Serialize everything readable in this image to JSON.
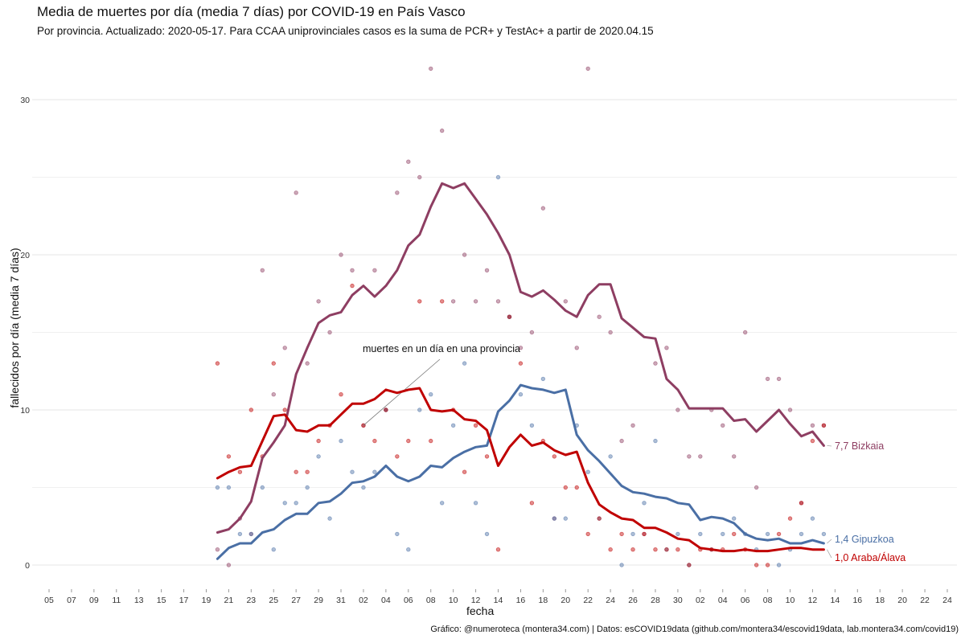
{
  "title": "Media de muertes por día (media 7 días) por COVID-19 en País Vasco",
  "subtitle": "Por provincia. Actualizado: 2020-05-17. Para CCAA uniprovinciales casos es la suma de PCR+ y TestAc+ a partir de 2020.04.15",
  "caption": "Gráfico: @numeroteca (montera34.com) | Datos: esCOVID19data (github.com/montera34/escovid19data, lab.montera34.com/covid19)",
  "chart_data": {
    "type": "line",
    "xlabel": "fecha",
    "ylabel": "fallecidos por día (media 7 días)",
    "x_range": [
      "2020-03-05",
      "2020-05-24"
    ],
    "ylim": [
      0,
      31
    ],
    "y_ticks": [
      0,
      10,
      20,
      30
    ],
    "x_tick_labels": [
      "05",
      "07",
      "09",
      "11",
      "13",
      "15",
      "17",
      "19",
      "21",
      "23",
      "25",
      "27",
      "29",
      "31",
      "02",
      "04",
      "06",
      "08",
      "10",
      "12",
      "14",
      "16",
      "18",
      "20",
      "22",
      "24",
      "26",
      "28",
      "30",
      "02",
      "04",
      "06",
      "08",
      "10",
      "12",
      "14",
      "16",
      "18",
      "20",
      "22",
      "24"
    ],
    "grid": true,
    "annotation": "muertes en un día en una provincia",
    "series": [
      {
        "name": "Bizkaia",
        "end_label": "7,7 Bizkaia",
        "color": "#8e3e62",
        "x": [
          "2020-03-20",
          "2020-03-21",
          "2020-03-22",
          "2020-03-23",
          "2020-03-24",
          "2020-03-25",
          "2020-03-26",
          "2020-03-27",
          "2020-03-28",
          "2020-03-29",
          "2020-03-30",
          "2020-03-31",
          "2020-04-01",
          "2020-04-02",
          "2020-04-03",
          "2020-04-04",
          "2020-04-05",
          "2020-04-06",
          "2020-04-07",
          "2020-04-08",
          "2020-04-09",
          "2020-04-10",
          "2020-04-11",
          "2020-04-12",
          "2020-04-13",
          "2020-04-14",
          "2020-04-15",
          "2020-04-16",
          "2020-04-17",
          "2020-04-18",
          "2020-04-19",
          "2020-04-20",
          "2020-04-21",
          "2020-04-22",
          "2020-04-23",
          "2020-04-24",
          "2020-04-25",
          "2020-04-26",
          "2020-04-27",
          "2020-04-28",
          "2020-04-29",
          "2020-04-30",
          "2020-05-01",
          "2020-05-02",
          "2020-05-03",
          "2020-05-04",
          "2020-05-05",
          "2020-05-06",
          "2020-05-07",
          "2020-05-08",
          "2020-05-09",
          "2020-05-10",
          "2020-05-11",
          "2020-05-12",
          "2020-05-13"
        ],
        "values": [
          2.1,
          2.3,
          3.0,
          4.1,
          6.9,
          7.9,
          9.0,
          12.3,
          14.0,
          15.6,
          16.1,
          16.3,
          17.4,
          18.0,
          17.3,
          18.0,
          19.0,
          20.6,
          21.3,
          23.1,
          24.6,
          24.3,
          24.6,
          23.6,
          22.6,
          21.4,
          20.0,
          17.6,
          17.3,
          17.7,
          17.1,
          16.4,
          16.0,
          17.4,
          18.1,
          18.1,
          15.9,
          15.3,
          14.7,
          14.6,
          12.0,
          11.3,
          10.1,
          10.1,
          10.1,
          10.1,
          9.3,
          9.4,
          8.6,
          9.3,
          10.0,
          9.1,
          8.3,
          8.6,
          7.7
        ],
        "daily_points": [
          1,
          0,
          3,
          2,
          19,
          11,
          14,
          24,
          13,
          17,
          15,
          20,
          19,
          9,
          19,
          10,
          24,
          26,
          25,
          32,
          28,
          17,
          20,
          17,
          19,
          17,
          16,
          14,
          15,
          23,
          3,
          17,
          14,
          32,
          16,
          15,
          8,
          9,
          2,
          13,
          14,
          10,
          7,
          7,
          10,
          9,
          7,
          15,
          5,
          12,
          12,
          10,
          4,
          9,
          9
        ]
      },
      {
        "name": "Gipuzkoa",
        "end_label": "1,4 Gipuzkoa",
        "color": "#4a6fa5",
        "x": [
          "2020-03-20",
          "2020-03-21",
          "2020-03-22",
          "2020-03-23",
          "2020-03-24",
          "2020-03-25",
          "2020-03-26",
          "2020-03-27",
          "2020-03-28",
          "2020-03-29",
          "2020-03-30",
          "2020-03-31",
          "2020-04-01",
          "2020-04-02",
          "2020-04-03",
          "2020-04-04",
          "2020-04-05",
          "2020-04-06",
          "2020-04-07",
          "2020-04-08",
          "2020-04-09",
          "2020-04-10",
          "2020-04-11",
          "2020-04-12",
          "2020-04-13",
          "2020-04-14",
          "2020-04-15",
          "2020-04-16",
          "2020-04-17",
          "2020-04-18",
          "2020-04-19",
          "2020-04-20",
          "2020-04-21",
          "2020-04-22",
          "2020-04-23",
          "2020-04-24",
          "2020-04-25",
          "2020-04-26",
          "2020-04-27",
          "2020-04-28",
          "2020-04-29",
          "2020-04-30",
          "2020-05-01",
          "2020-05-02",
          "2020-05-03",
          "2020-05-04",
          "2020-05-05",
          "2020-05-06",
          "2020-05-07",
          "2020-05-08",
          "2020-05-09",
          "2020-05-10",
          "2020-05-11",
          "2020-05-12",
          "2020-05-13"
        ],
        "values": [
          0.4,
          1.1,
          1.4,
          1.4,
          2.1,
          2.3,
          2.9,
          3.3,
          3.3,
          4.0,
          4.1,
          4.6,
          5.3,
          5.4,
          5.7,
          6.4,
          5.7,
          5.4,
          5.7,
          6.4,
          6.3,
          6.9,
          7.3,
          7.6,
          7.7,
          9.9,
          10.6,
          11.6,
          11.4,
          11.3,
          11.1,
          11.3,
          8.4,
          7.4,
          6.7,
          5.9,
          5.1,
          4.7,
          4.6,
          4.4,
          4.3,
          4.0,
          3.9,
          2.9,
          3.1,
          3.0,
          2.7,
          2.0,
          1.7,
          1.6,
          1.7,
          1.4,
          1.4,
          1.6,
          1.4
        ],
        "daily_points": [
          5,
          5,
          2,
          2,
          5,
          1,
          4,
          4,
          5,
          7,
          3,
          8,
          6,
          5,
          6,
          10,
          2,
          1,
          10,
          11,
          4,
          9,
          13,
          4,
          2,
          25,
          16,
          11,
          9,
          12,
          3,
          3,
          9,
          6,
          3,
          7,
          0,
          2,
          4,
          8,
          1,
          2,
          0,
          2,
          1,
          2,
          3,
          2,
          1,
          2,
          0,
          1,
          2,
          3,
          2
        ]
      },
      {
        "name": "Araba/Álava",
        "end_label": "1,0 Araba/Álava",
        "color": "#c00000",
        "x": [
          "2020-03-20",
          "2020-03-21",
          "2020-03-22",
          "2020-03-23",
          "2020-03-24",
          "2020-03-25",
          "2020-03-26",
          "2020-03-27",
          "2020-03-28",
          "2020-03-29",
          "2020-03-30",
          "2020-03-31",
          "2020-04-01",
          "2020-04-02",
          "2020-04-03",
          "2020-04-04",
          "2020-04-05",
          "2020-04-06",
          "2020-04-07",
          "2020-04-08",
          "2020-04-09",
          "2020-04-10",
          "2020-04-11",
          "2020-04-12",
          "2020-04-13",
          "2020-04-14",
          "2020-04-15",
          "2020-04-16",
          "2020-04-17",
          "2020-04-18",
          "2020-04-19",
          "2020-04-20",
          "2020-04-21",
          "2020-04-22",
          "2020-04-23",
          "2020-04-24",
          "2020-04-25",
          "2020-04-26",
          "2020-04-27",
          "2020-04-28",
          "2020-04-29",
          "2020-04-30",
          "2020-05-01",
          "2020-05-02",
          "2020-05-03",
          "2020-05-04",
          "2020-05-05",
          "2020-05-06",
          "2020-05-07",
          "2020-05-08",
          "2020-05-09",
          "2020-05-10",
          "2020-05-11",
          "2020-05-12",
          "2020-05-13"
        ],
        "values": [
          5.6,
          6.0,
          6.3,
          6.4,
          8.0,
          9.6,
          9.7,
          8.7,
          8.6,
          9.0,
          9.0,
          9.7,
          10.4,
          10.4,
          10.7,
          11.3,
          11.1,
          11.3,
          11.4,
          10.0,
          9.9,
          10.0,
          9.4,
          9.3,
          8.7,
          6.4,
          7.6,
          8.4,
          7.7,
          7.9,
          7.4,
          7.1,
          7.3,
          5.3,
          3.9,
          3.4,
          3.0,
          2.9,
          2.4,
          2.4,
          2.1,
          1.7,
          1.6,
          1.1,
          1.0,
          0.9,
          0.9,
          1.0,
          0.9,
          0.9,
          1.0,
          1.1,
          1.1,
          1.0,
          1.0
        ],
        "daily_points": [
          13,
          7,
          6,
          10,
          7,
          13,
          10,
          6,
          6,
          8,
          9,
          11,
          18,
          9,
          8,
          10,
          7,
          8,
          17,
          8,
          17,
          10,
          6,
          9,
          7,
          1,
          16,
          13,
          4,
          8,
          7,
          5,
          5,
          2,
          3,
          1,
          2,
          1,
          2,
          1,
          1,
          1,
          0,
          1,
          1,
          1,
          2,
          1,
          0,
          0,
          2,
          3,
          4,
          8,
          9
        ]
      }
    ]
  }
}
